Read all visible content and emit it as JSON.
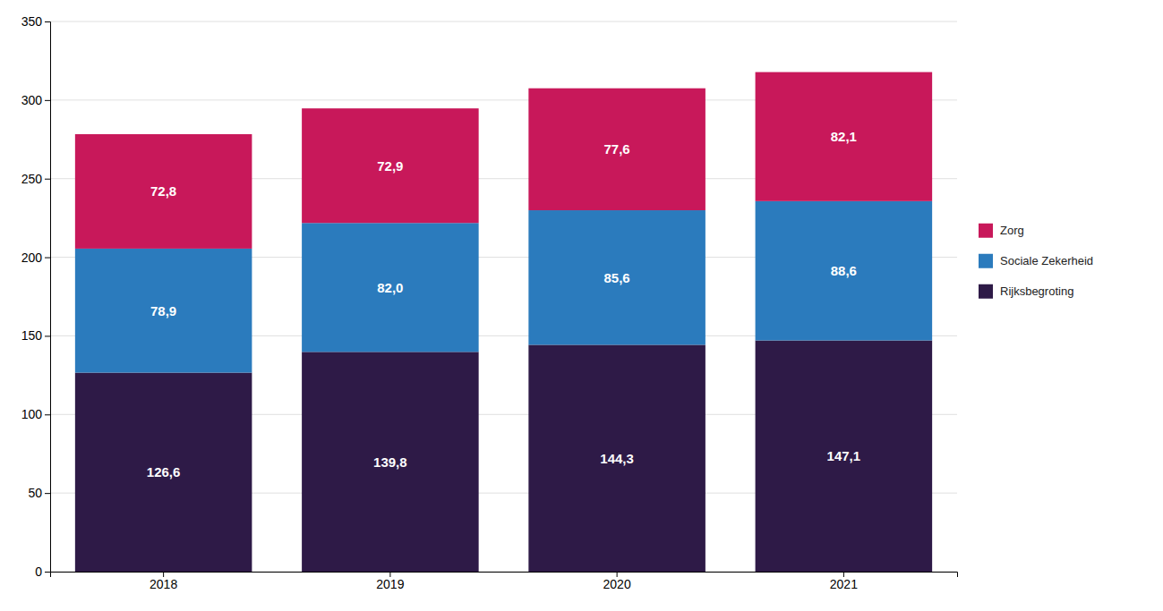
{
  "chart_data": {
    "type": "bar",
    "stacked": true,
    "data_labels": true,
    "grid": true,
    "legend": "right",
    "categories": [
      "2018",
      "2019",
      "2020",
      "2021"
    ],
    "series": [
      {
        "name": "Rijksbegroting",
        "color": "#2E1A47",
        "values": [
          126.6,
          139.8,
          144.3,
          147.1
        ],
        "value_labels": [
          "126,6",
          "139,8",
          "144,3",
          "147,1"
        ]
      },
      {
        "name": "Sociale Zekerheid",
        "color": "#2B7BBD",
        "values": [
          78.9,
          82.0,
          85.6,
          88.6
        ],
        "value_labels": [
          "78,9",
          "82,0",
          "85,6",
          "88,6"
        ]
      },
      {
        "name": "Zorg",
        "color": "#C8185A",
        "values": [
          72.8,
          72.9,
          77.6,
          82.1
        ],
        "value_labels": [
          "72,8",
          "72,9",
          "77,6",
          "82,1"
        ]
      }
    ],
    "ylim": [
      0,
      350
    ],
    "yticks": [
      0,
      50,
      100,
      150,
      200,
      250,
      300,
      350
    ]
  }
}
